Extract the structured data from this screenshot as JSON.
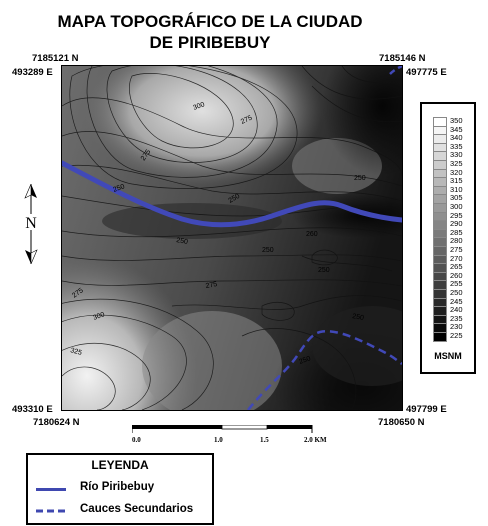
{
  "title": {
    "line1": "MAPA TOPOGRÁFICO DE LA CIUDAD",
    "line2": "DE PIRIBEBUY"
  },
  "coordinates": {
    "top_left_north": "7185121 N",
    "top_left_east": "493289 E",
    "top_right_north": "7185146 N",
    "top_right_east": "497775 E",
    "bottom_left_east": "493310 E",
    "bottom_left_north": "7180624 N",
    "bottom_right_east": "497799 E",
    "bottom_right_north": "7180650 N"
  },
  "north_arrow": {
    "label": "N",
    "icon": "north-arrow-icon"
  },
  "elevation_scale": {
    "unit": "MSNM",
    "levels": [
      350,
      345,
      340,
      335,
      330,
      325,
      320,
      315,
      310,
      305,
      300,
      295,
      290,
      285,
      280,
      275,
      270,
      265,
      260,
      255,
      250,
      245,
      240,
      235,
      230,
      225
    ],
    "color_low": "#000000",
    "color_high": "#ffffff"
  },
  "scale_bar": {
    "labels": [
      "0.0",
      "1.0",
      "1.5",
      "2.0 KM"
    ]
  },
  "contour_labels": [
    "300",
    "275",
    "275",
    "250",
    "250",
    "250",
    "250",
    "260",
    "250",
    "275",
    "275",
    "300",
    "325",
    "250",
    "250",
    "250"
  ],
  "legend": {
    "title": "LEYENDA",
    "items": [
      {
        "label": "Río Piribebuy",
        "style": "solid",
        "color": "#3f48b0"
      },
      {
        "label": "Cauces Secundarios",
        "style": "dashed",
        "color": "#3f48b0"
      }
    ]
  }
}
